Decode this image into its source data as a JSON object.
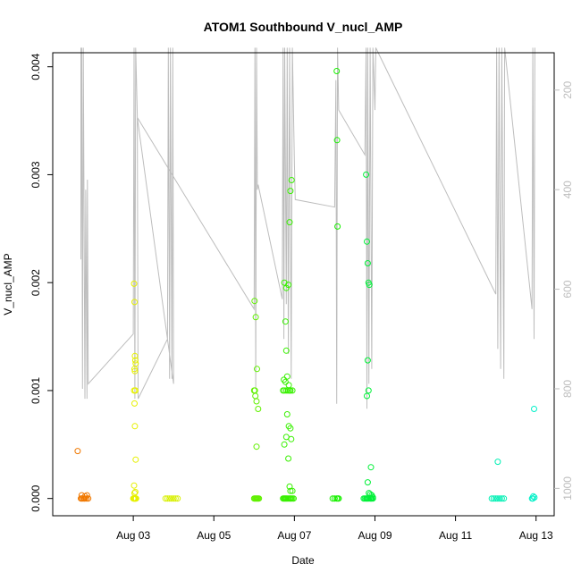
{
  "chart_data": {
    "type": "scatter",
    "title": "ATOM1 Southbound V_nucl_AMP",
    "xlabel": "Date",
    "ylabel": "V_nucl_AMP",
    "x_ticks": [
      {
        "day": 3,
        "label": "Aug 03"
      },
      {
        "day": 5,
        "label": "Aug 05"
      },
      {
        "day": 7,
        "label": "Aug 07"
      },
      {
        "day": 9,
        "label": "Aug 09"
      },
      {
        "day": 11,
        "label": "Aug 11"
      },
      {
        "day": 13,
        "label": "Aug 13"
      }
    ],
    "xlim_days": [
      1.0,
      13.45
    ],
    "ylim": [
      -0.00016,
      0.00413
    ],
    "y_ticks": [
      0.0,
      0.001,
      0.002,
      0.003,
      0.004
    ],
    "y_tick_labels": [
      "0.000",
      "0.001",
      "0.002",
      "0.003",
      "0.004"
    ],
    "right_axis": {
      "label": "",
      "ticks": [
        200,
        400,
        600,
        800,
        1000
      ],
      "tick_labels": [
        "200",
        "400",
        "600",
        "800",
        "1000"
      ],
      "reversed": true,
      "lim_top": 125,
      "lim_bottom": 1055,
      "color": "#bdbdbd"
    },
    "background_line": {
      "color": "#bdbdbd",
      "points": [
        [
          1.7,
          115
        ],
        [
          1.7,
          540
        ],
        [
          1.72,
          115
        ],
        [
          1.74,
          800
        ],
        [
          1.76,
          115
        ],
        [
          1.8,
          820
        ],
        [
          1.82,
          400
        ],
        [
          1.85,
          820
        ],
        [
          1.86,
          380
        ],
        [
          1.88,
          790
        ],
        [
          3.0,
          690
        ],
        [
          3.02,
          115
        ],
        [
          3.04,
          820
        ],
        [
          3.06,
          115
        ],
        [
          3.1,
          250
        ],
        [
          3.12,
          820
        ],
        [
          3.85,
          700
        ],
        [
          3.87,
          115
        ],
        [
          3.9,
          780
        ],
        [
          3.92,
          115
        ],
        [
          3.96,
          780
        ],
        [
          3.98,
          115
        ],
        [
          4.0,
          790
        ],
        [
          3.1,
          255
        ],
        [
          6.0,
          640
        ],
        [
          6.02,
          115
        ],
        [
          6.04,
          800
        ],
        [
          6.06,
          115
        ],
        [
          6.08,
          400
        ],
        [
          6.1,
          390
        ],
        [
          6.7,
          620
        ],
        [
          6.72,
          115
        ],
        [
          6.74,
          700
        ],
        [
          6.76,
          115
        ],
        [
          6.8,
          630
        ],
        [
          6.82,
          115
        ],
        [
          6.85,
          730
        ],
        [
          6.88,
          115
        ],
        [
          6.92,
          780
        ],
        [
          6.95,
          115
        ],
        [
          7.0,
          350
        ],
        [
          7.02,
          420
        ],
        [
          8.0,
          435
        ],
        [
          8.03,
          180
        ],
        [
          8.05,
          830
        ],
        [
          8.07,
          115
        ],
        [
          8.1,
          240
        ],
        [
          8.75,
          330
        ],
        [
          8.78,
          115
        ],
        [
          8.8,
          840
        ],
        [
          8.82,
          115
        ],
        [
          8.85,
          790
        ],
        [
          8.88,
          115
        ],
        [
          8.92,
          760
        ],
        [
          8.95,
          115
        ],
        [
          9.0,
          240
        ],
        [
          9.02,
          115
        ],
        [
          12.0,
          610
        ],
        [
          12.02,
          115
        ],
        [
          12.05,
          720
        ],
        [
          12.08,
          115
        ],
        [
          12.12,
          760
        ],
        [
          12.15,
          115
        ],
        [
          12.2,
          780
        ],
        [
          12.22,
          115
        ],
        [
          12.9,
          640
        ],
        [
          12.92,
          115
        ],
        [
          12.95,
          700
        ],
        [
          12.97,
          115
        ]
      ]
    },
    "series": [
      {
        "color": "#f07800",
        "x": [
          1.62,
          1.7,
          1.72,
          1.75,
          1.78,
          1.8,
          1.84,
          1.88,
          1.72,
          1.8,
          1.85
        ],
        "y": [
          0.00044,
          0.0,
          0.0,
          0.0,
          0.0,
          0.0,
          0.0,
          0.0,
          3e-05,
          2e-05,
          3e-05
        ]
      },
      {
        "color": "#e6f000",
        "x": [
          3.0,
          3.01,
          3.02,
          3.03,
          3.04,
          3.05,
          3.06,
          3.07,
          3.02,
          3.03,
          3.04,
          3.05,
          3.06,
          3.03,
          3.04,
          3.05,
          3.02,
          3.05,
          3.03,
          3.04,
          3.06,
          3.02,
          3.05,
          3.04,
          3.03
        ],
        "y": [
          0.0,
          0.0,
          0.0,
          0.0,
          0.0,
          0.0,
          0.0,
          0.0,
          0.00199,
          0.00182,
          0.00132,
          0.00128,
          0.00125,
          0.0012,
          0.00118,
          0.001,
          0.001,
          0.001,
          0.00088,
          0.00067,
          0.00036,
          0.00012,
          6e-05,
          0.0,
          5e-05
        ]
      },
      {
        "color": "#d8f000",
        "x": [
          3.8,
          3.85,
          3.9,
          3.95,
          4.0,
          4.05,
          4.1
        ],
        "y": [
          0.0,
          0.0,
          0.0,
          0.0,
          0.0,
          0.0,
          0.0
        ]
      },
      {
        "color": "#60f000",
        "x": [
          6.0,
          6.02,
          6.04,
          6.06,
          6.08,
          6.1,
          6.01,
          6.04,
          6.07,
          6.02,
          6.0,
          6.03,
          6.06,
          6.1,
          6.12,
          6.06
        ],
        "y": [
          0.0,
          0.0,
          0.0,
          0.0,
          0.0,
          0.0,
          0.00183,
          0.00168,
          0.0012,
          0.001,
          0.001,
          0.00095,
          0.0009,
          0.00083,
          0.0,
          0.00048
        ]
      },
      {
        "color": "#38f000",
        "x": [
          6.72,
          6.74,
          6.76,
          6.78,
          6.8,
          6.82,
          6.85,
          6.88,
          6.9,
          6.92,
          6.95,
          6.98,
          6.75,
          6.8,
          6.85,
          6.9,
          6.74,
          6.78,
          6.82,
          6.86,
          6.88,
          6.72,
          6.75,
          6.8,
          6.84,
          6.9,
          6.95,
          6.78,
          6.8,
          6.82,
          6.86,
          6.92,
          6.75,
          6.8,
          6.85,
          6.88,
          6.9,
          6.95,
          6.93
        ],
        "y": [
          0.0,
          0.0,
          0.0,
          0.0,
          0.0,
          0.0,
          0.0,
          0.0,
          0.0,
          0.0,
          0.0,
          0.0,
          0.002,
          0.00195,
          0.00198,
          0.00285,
          0.0011,
          0.00108,
          0.00113,
          0.00105,
          0.001,
          0.001,
          0.001,
          0.001,
          0.001,
          0.001,
          0.001,
          0.00164,
          0.00137,
          0.00078,
          0.00067,
          0.00055,
          0.0005,
          0.00057,
          0.00037,
          0.00011,
          7e-05,
          7e-05,
          0.00295
        ]
      },
      {
        "color": "#38f000",
        "x": [
          6.88,
          6.9
        ],
        "y": [
          0.00256,
          0.00065
        ]
      },
      {
        "color": "#18f000",
        "x": [
          7.95,
          8.0,
          8.05,
          8.08,
          8.1,
          8.05,
          8.06,
          8.07
        ],
        "y": [
          0.0,
          0.0,
          0.0,
          0.0,
          0.0,
          0.00396,
          0.00332,
          0.00252
        ]
      },
      {
        "color": "#00f038",
        "x": [
          8.72,
          8.75,
          8.78,
          8.8,
          8.82,
          8.85,
          8.88,
          8.9,
          8.92,
          8.95,
          8.78,
          8.8,
          8.82,
          8.84,
          8.86,
          8.82,
          8.84,
          8.8,
          8.82,
          8.85,
          8.88,
          8.92,
          8.9,
          8.95
        ],
        "y": [
          0.0,
          0.0,
          0.0,
          0.0,
          0.0,
          0.0,
          0.0,
          0.0,
          0.0,
          0.0,
          0.003,
          0.00238,
          0.00218,
          0.002,
          0.00198,
          0.00128,
          0.001,
          0.00095,
          0.00015,
          5e-05,
          4e-05,
          3e-05,
          0.00029,
          1e-05
        ]
      },
      {
        "color": "#00f0b4",
        "x": [
          11.9,
          11.95,
          12.0,
          12.05,
          12.1,
          12.15,
          12.2,
          12.05
        ],
        "y": [
          0.0,
          0.0,
          0.0,
          0.0,
          0.0,
          0.0,
          0.0,
          0.00034
        ]
      },
      {
        "color": "#00f0c8",
        "x": [
          12.9,
          12.92,
          12.95,
          12.93,
          12.96
        ],
        "y": [
          0.0,
          0.0,
          0.00083,
          2e-05,
          1e-05
        ]
      }
    ]
  }
}
